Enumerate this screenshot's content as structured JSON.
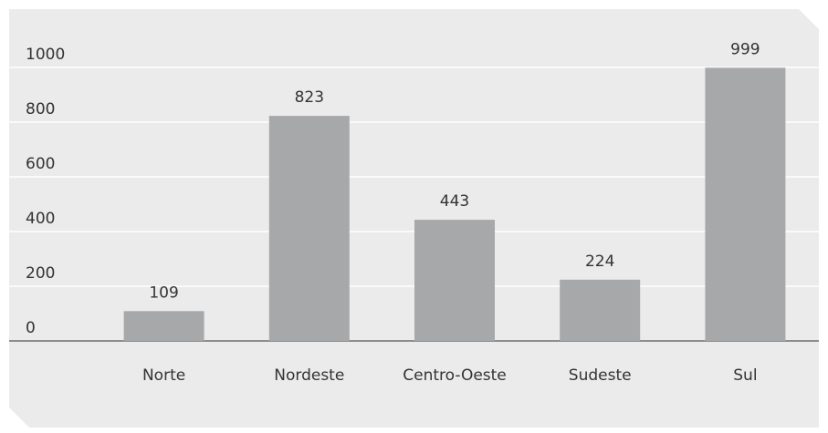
{
  "chart_data": {
    "type": "bar",
    "categories": [
      "Norte",
      "Nordeste",
      "Centro-Oeste",
      "Sudeste",
      "Sul"
    ],
    "values": [
      109,
      823,
      443,
      224,
      999
    ],
    "color": "#a7a8aa",
    "ylim": [
      0,
      1000
    ],
    "yticks": [
      0,
      200,
      400,
      600,
      800,
      1000
    ],
    "grid": true
  }
}
